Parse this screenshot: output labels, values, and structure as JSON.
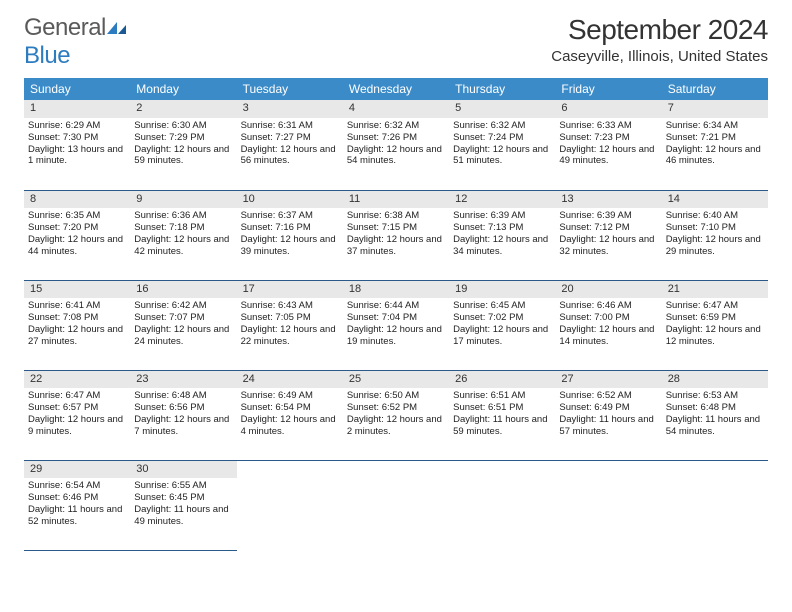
{
  "brand": {
    "text1": "General",
    "text2": "Blue"
  },
  "title": "September 2024",
  "location": "Caseyville, Illinois, United States",
  "colors": {
    "header_bg": "#3b8bc9",
    "daynum_bg": "#e8e8e8",
    "rule": "#2a5a8a"
  },
  "dow": [
    "Sunday",
    "Monday",
    "Tuesday",
    "Wednesday",
    "Thursday",
    "Friday",
    "Saturday"
  ],
  "days": [
    {
      "n": "1",
      "sr": "Sunrise: 6:29 AM",
      "ss": "Sunset: 7:30 PM",
      "dl": "Daylight: 13 hours and 1 minute."
    },
    {
      "n": "2",
      "sr": "Sunrise: 6:30 AM",
      "ss": "Sunset: 7:29 PM",
      "dl": "Daylight: 12 hours and 59 minutes."
    },
    {
      "n": "3",
      "sr": "Sunrise: 6:31 AM",
      "ss": "Sunset: 7:27 PM",
      "dl": "Daylight: 12 hours and 56 minutes."
    },
    {
      "n": "4",
      "sr": "Sunrise: 6:32 AM",
      "ss": "Sunset: 7:26 PM",
      "dl": "Daylight: 12 hours and 54 minutes."
    },
    {
      "n": "5",
      "sr": "Sunrise: 6:32 AM",
      "ss": "Sunset: 7:24 PM",
      "dl": "Daylight: 12 hours and 51 minutes."
    },
    {
      "n": "6",
      "sr": "Sunrise: 6:33 AM",
      "ss": "Sunset: 7:23 PM",
      "dl": "Daylight: 12 hours and 49 minutes."
    },
    {
      "n": "7",
      "sr": "Sunrise: 6:34 AM",
      "ss": "Sunset: 7:21 PM",
      "dl": "Daylight: 12 hours and 46 minutes."
    },
    {
      "n": "8",
      "sr": "Sunrise: 6:35 AM",
      "ss": "Sunset: 7:20 PM",
      "dl": "Daylight: 12 hours and 44 minutes."
    },
    {
      "n": "9",
      "sr": "Sunrise: 6:36 AM",
      "ss": "Sunset: 7:18 PM",
      "dl": "Daylight: 12 hours and 42 minutes."
    },
    {
      "n": "10",
      "sr": "Sunrise: 6:37 AM",
      "ss": "Sunset: 7:16 PM",
      "dl": "Daylight: 12 hours and 39 minutes."
    },
    {
      "n": "11",
      "sr": "Sunrise: 6:38 AM",
      "ss": "Sunset: 7:15 PM",
      "dl": "Daylight: 12 hours and 37 minutes."
    },
    {
      "n": "12",
      "sr": "Sunrise: 6:39 AM",
      "ss": "Sunset: 7:13 PM",
      "dl": "Daylight: 12 hours and 34 minutes."
    },
    {
      "n": "13",
      "sr": "Sunrise: 6:39 AM",
      "ss": "Sunset: 7:12 PM",
      "dl": "Daylight: 12 hours and 32 minutes."
    },
    {
      "n": "14",
      "sr": "Sunrise: 6:40 AM",
      "ss": "Sunset: 7:10 PM",
      "dl": "Daylight: 12 hours and 29 minutes."
    },
    {
      "n": "15",
      "sr": "Sunrise: 6:41 AM",
      "ss": "Sunset: 7:08 PM",
      "dl": "Daylight: 12 hours and 27 minutes."
    },
    {
      "n": "16",
      "sr": "Sunrise: 6:42 AM",
      "ss": "Sunset: 7:07 PM",
      "dl": "Daylight: 12 hours and 24 minutes."
    },
    {
      "n": "17",
      "sr": "Sunrise: 6:43 AM",
      "ss": "Sunset: 7:05 PM",
      "dl": "Daylight: 12 hours and 22 minutes."
    },
    {
      "n": "18",
      "sr": "Sunrise: 6:44 AM",
      "ss": "Sunset: 7:04 PM",
      "dl": "Daylight: 12 hours and 19 minutes."
    },
    {
      "n": "19",
      "sr": "Sunrise: 6:45 AM",
      "ss": "Sunset: 7:02 PM",
      "dl": "Daylight: 12 hours and 17 minutes."
    },
    {
      "n": "20",
      "sr": "Sunrise: 6:46 AM",
      "ss": "Sunset: 7:00 PM",
      "dl": "Daylight: 12 hours and 14 minutes."
    },
    {
      "n": "21",
      "sr": "Sunrise: 6:47 AM",
      "ss": "Sunset: 6:59 PM",
      "dl": "Daylight: 12 hours and 12 minutes."
    },
    {
      "n": "22",
      "sr": "Sunrise: 6:47 AM",
      "ss": "Sunset: 6:57 PM",
      "dl": "Daylight: 12 hours and 9 minutes."
    },
    {
      "n": "23",
      "sr": "Sunrise: 6:48 AM",
      "ss": "Sunset: 6:56 PM",
      "dl": "Daylight: 12 hours and 7 minutes."
    },
    {
      "n": "24",
      "sr": "Sunrise: 6:49 AM",
      "ss": "Sunset: 6:54 PM",
      "dl": "Daylight: 12 hours and 4 minutes."
    },
    {
      "n": "25",
      "sr": "Sunrise: 6:50 AM",
      "ss": "Sunset: 6:52 PM",
      "dl": "Daylight: 12 hours and 2 minutes."
    },
    {
      "n": "26",
      "sr": "Sunrise: 6:51 AM",
      "ss": "Sunset: 6:51 PM",
      "dl": "Daylight: 11 hours and 59 minutes."
    },
    {
      "n": "27",
      "sr": "Sunrise: 6:52 AM",
      "ss": "Sunset: 6:49 PM",
      "dl": "Daylight: 11 hours and 57 minutes."
    },
    {
      "n": "28",
      "sr": "Sunrise: 6:53 AM",
      "ss": "Sunset: 6:48 PM",
      "dl": "Daylight: 11 hours and 54 minutes."
    },
    {
      "n": "29",
      "sr": "Sunrise: 6:54 AM",
      "ss": "Sunset: 6:46 PM",
      "dl": "Daylight: 11 hours and 52 minutes."
    },
    {
      "n": "30",
      "sr": "Sunrise: 6:55 AM",
      "ss": "Sunset: 6:45 PM",
      "dl": "Daylight: 11 hours and 49 minutes."
    }
  ]
}
